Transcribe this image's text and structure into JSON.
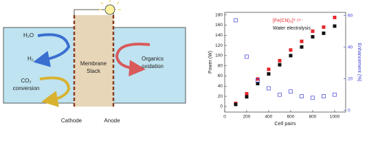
{
  "diagram": {
    "cathode_side": {
      "water": "H₂O",
      "hydrogen": "H₂",
      "co2": [
        "CO₂",
        "conversion"
      ]
    },
    "stack": [
      "Membrane",
      "Stack"
    ],
    "anode_side": [
      "Organics",
      "oxidation"
    ],
    "electrodes": {
      "cathode": "Cathode",
      "anode": "Anode"
    }
  },
  "chart_data": {
    "type": "scatter",
    "x_label": "Cell pairs",
    "y_label": "Power (W)",
    "y2_label": "Enhancement (%)",
    "x": [
      100,
      200,
      300,
      400,
      500,
      600,
      700,
      800,
      900,
      1000
    ],
    "series": [
      {
        "name": "[Fe(CN)₆]³⁻/⁴⁻",
        "color": "#e8262b",
        "marker": "filled",
        "values": [
          6,
          25,
          54,
          73,
          90,
          111,
          128,
          148,
          156,
          175
        ]
      },
      {
        "name": "Water electrolysis",
        "color": "#111111",
        "marker": "filled",
        "values": [
          4,
          19,
          45,
          64,
          82,
          100,
          117,
          137,
          144,
          158
        ]
      },
      {
        "name": "Enhancement",
        "color": "#3b3bd6",
        "marker": "open",
        "axis": "y2",
        "values": [
          57,
          34,
          19,
          14,
          10,
          12,
          9,
          8,
          9,
          10
        ]
      }
    ],
    "xlim": [
      0,
      1100
    ],
    "xticks": [
      0,
      200,
      400,
      600,
      800,
      1000
    ],
    "ylim": [
      -11,
      185
    ],
    "yticks": [
      0,
      20,
      40,
      60,
      80,
      100,
      120,
      140,
      160,
      180
    ],
    "y2lim": [
      -1,
      62
    ],
    "y2ticks": [
      0,
      20,
      40,
      60
    ],
    "legend_count": 2
  }
}
